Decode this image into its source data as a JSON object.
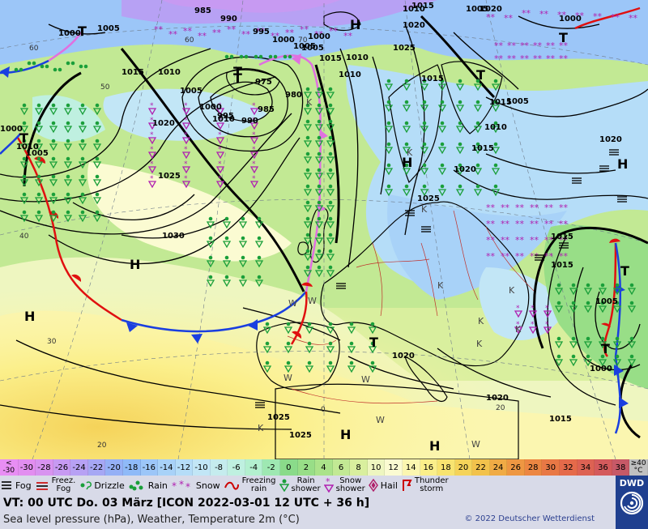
{
  "map": {
    "pressure_labels": [
      "1000",
      "1005",
      "990",
      "985",
      "995",
      "1000",
      "1005",
      "1015",
      "1010",
      "1010",
      "1015",
      "1020",
      "1005",
      "1020",
      "1000",
      "1015",
      "1010",
      "1005",
      "1000",
      "1010",
      "1000",
      "975",
      "980",
      "985",
      "995",
      "990",
      "1000",
      "1005",
      "1010",
      "1015",
      "1020",
      "1025",
      "1030",
      "1015",
      "1020",
      "1005",
      "1015",
      "1010",
      "1020",
      "1025",
      "1025",
      "1020",
      "1015",
      "1020",
      "1025",
      "1025",
      "1015",
      "1010",
      "1005",
      "1000",
      "1005",
      "1015"
    ],
    "temperature_labels": [
      "50",
      "60",
      "60",
      "40",
      "30",
      "20",
      "0",
      "20",
      "70"
    ],
    "high_low_labels": [
      "T",
      "H",
      "T",
      "T",
      "T",
      "H",
      "H",
      "H",
      "H",
      "H",
      "H",
      "T",
      "T",
      "T",
      "T",
      "T"
    ],
    "weather_letters": [
      "K",
      "K",
      "K",
      "K",
      "K",
      "K",
      "K",
      "K",
      "W",
      "W",
      "W",
      "W",
      "W",
      "W",
      "K"
    ]
  },
  "color_scale": {
    "entries": [
      {
        "label": "-30",
        "color": "#e28ef0"
      },
      {
        "label": "-28",
        "color": "#d893f0"
      },
      {
        "label": "-26",
        "color": "#c79af2"
      },
      {
        "label": "-24",
        "color": "#b7a1f4"
      },
      {
        "label": "-22",
        "color": "#a6a7f4"
      },
      {
        "label": "-20",
        "color": "#95b0f6"
      },
      {
        "label": "-18",
        "color": "#8fbaf8"
      },
      {
        "label": "-16",
        "color": "#9cc6f8"
      },
      {
        "label": "-14",
        "color": "#a8d2f8"
      },
      {
        "label": "-12",
        "color": "#b5ddf8"
      },
      {
        "label": "-10",
        "color": "#c2e6f6"
      },
      {
        "label": "-8",
        "color": "#c5ecee"
      },
      {
        "label": "-6",
        "color": "#bff0e0"
      },
      {
        "label": "-4",
        "color": "#b3f0cf"
      },
      {
        "label": "-2",
        "color": "#9ee8b2"
      },
      {
        "label": "0",
        "color": "#8adb8a"
      },
      {
        "label": "2",
        "color": "#98de87"
      },
      {
        "label": "4",
        "color": "#abe38a"
      },
      {
        "label": "6",
        "color": "#c2e994"
      },
      {
        "label": "8",
        "color": "#d9ef9e"
      },
      {
        "label": "10",
        "color": "#eef6c0"
      },
      {
        "label": "12",
        "color": "#fbfbd2"
      },
      {
        "label": "14",
        "color": "#fbf6b0"
      },
      {
        "label": "16",
        "color": "#fbef8a"
      },
      {
        "label": "18",
        "color": "#f8e470"
      },
      {
        "label": "20",
        "color": "#f5d35a"
      },
      {
        "label": "22",
        "color": "#f2c24c"
      },
      {
        "label": "24",
        "color": "#f0ab45"
      },
      {
        "label": "26",
        "color": "#ee9742"
      },
      {
        "label": "28",
        "color": "#ec8642"
      },
      {
        "label": "30",
        "color": "#e87845"
      },
      {
        "label": "32",
        "color": "#e56a4a"
      },
      {
        "label": "34",
        "color": "#dd6253"
      },
      {
        "label": "36",
        "color": "#d45a5c"
      },
      {
        "label": "38",
        "color": "#c65967"
      }
    ],
    "low_end": {
      "line1": "<",
      "line2": "-30"
    },
    "high_end": {
      "line1": "≥40",
      "line2": "°C"
    }
  },
  "legend": {
    "fog": "Fog",
    "freezing_fog": {
      "line1": "Freez.",
      "line2": "Fog"
    },
    "drizzle": "Drizzle",
    "rain": "Rain",
    "snow": "Snow",
    "freezing_rain": {
      "line1": "Freezing",
      "line2": "rain"
    },
    "rain_shower": {
      "line1": "Rain",
      "line2": "shower"
    },
    "snow_shower": {
      "line1": "Snow",
      "line2": "shower"
    },
    "hail": "Hail",
    "thunderstorm": {
      "line1": "Thunder",
      "line2": "storm"
    }
  },
  "footer": {
    "valid_time": "VT: 00 UTC Do.   03 März [ICON 2022-03-01  12 UTC + 36 h]",
    "description": "Sea level pressure (hPa), Weather, Temperature 2m (°C)",
    "copyright": "© 2022 Deutscher Wetterdienst",
    "logo": "DWD"
  },
  "colors": {
    "cold_front": "#1a3fe0",
    "warm_front": "#e01010",
    "occlusion": "#e070e0",
    "isobar": "#000000"
  }
}
